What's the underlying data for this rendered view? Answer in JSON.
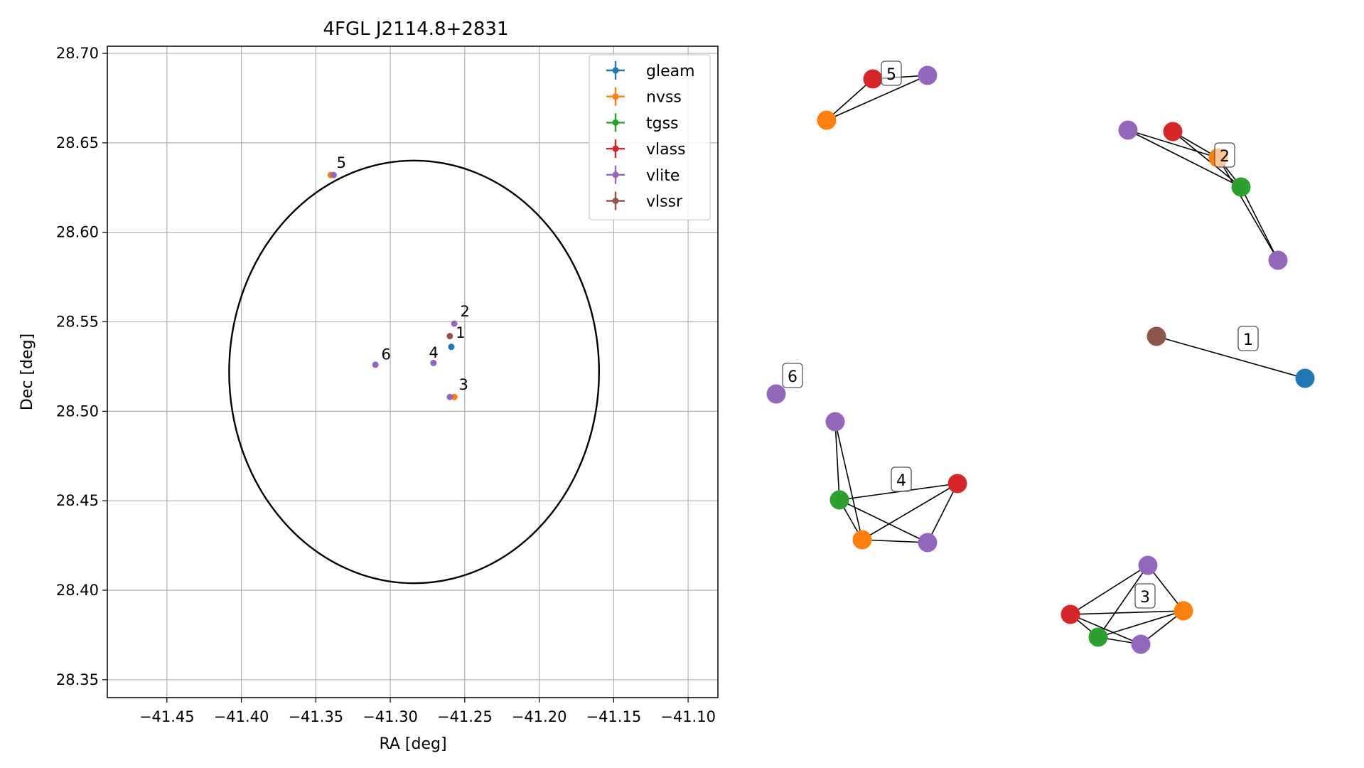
{
  "chart_data": [
    {
      "type": "scatter",
      "title": "4FGL J2114.8+2831",
      "xlabel": "RA [deg]",
      "ylabel": "Dec [deg]",
      "xlim": [
        -41.49,
        -41.08
      ],
      "ylim": [
        28.34,
        28.704
      ],
      "xticks": [
        -41.45,
        -41.4,
        -41.35,
        -41.3,
        -41.25,
        -41.2,
        -41.15,
        -41.1
      ],
      "xtick_labels": [
        "−41.45",
        "−41.40",
        "−41.35",
        "−41.30",
        "−41.25",
        "−41.20",
        "−41.15",
        "−41.10"
      ],
      "yticks": [
        28.35,
        28.4,
        28.45,
        28.5,
        28.55,
        28.6,
        28.65,
        28.7
      ],
      "ytick_labels": [
        "28.35",
        "28.40",
        "28.45",
        "28.50",
        "28.55",
        "28.60",
        "28.65",
        "28.70"
      ],
      "grid": true,
      "legend_position": "top-right",
      "series": [
        {
          "name": "gleam",
          "color": "#1f77b4",
          "points": [
            [
              -41.259,
              28.536
            ]
          ]
        },
        {
          "name": "nvss",
          "color": "#ff7f0e",
          "points": [
            [
              -41.257,
              28.508
            ],
            [
              -41.34,
              28.632
            ]
          ]
        },
        {
          "name": "tgss",
          "color": "#2ca02c",
          "points": []
        },
        {
          "name": "vlass",
          "color": "#d62728",
          "points": []
        },
        {
          "name": "vlite",
          "color": "#9467bd",
          "points": [
            [
              -41.257,
              28.549
            ],
            [
              -41.26,
              28.508
            ],
            [
              -41.271,
              28.527
            ],
            [
              -41.338,
              28.632
            ],
            [
              -41.31,
              28.526
            ]
          ]
        },
        {
          "name": "vlssr",
          "color": "#8c564b",
          "points": [
            [
              -41.26,
              28.542
            ]
          ]
        }
      ],
      "annotations": [
        {
          "text": "1",
          "x": -41.256,
          "y": 28.541
        },
        {
          "text": "2",
          "x": -41.253,
          "y": 28.553
        },
        {
          "text": "3",
          "x": -41.254,
          "y": 28.512
        },
        {
          "text": "4",
          "x": -41.274,
          "y": 28.53
        },
        {
          "text": "5",
          "x": -41.336,
          "y": 28.636
        },
        {
          "text": "6",
          "x": -41.306,
          "y": 28.529
        }
      ],
      "ellipse": {
        "center": [
          -41.284,
          28.522
        ],
        "semi_axis_x": 0.1242,
        "semi_axis_y": 0.1181,
        "color": "#000000"
      }
    },
    {
      "type": "network",
      "node_colors": {
        "gleam": "#1f77b4",
        "nvss": "#ff7f0e",
        "tgss": "#2ca02c",
        "vlass": "#d62728",
        "vlite": "#9467bd",
        "vlssr": "#8c564b"
      },
      "groups": [
        {
          "label": "5",
          "nodes": [
            "vlass",
            "vlite",
            "nvss"
          ],
          "edges": [
            [
              0,
              1
            ],
            [
              1,
              2
            ],
            [
              0,
              2
            ]
          ]
        },
        {
          "label": "2",
          "nodes": [
            "vlite",
            "vlass",
            "nvss",
            "tgss",
            "vlite"
          ],
          "edges": [
            [
              0,
              2
            ],
            [
              0,
              3
            ],
            [
              1,
              2
            ],
            [
              1,
              3
            ],
            [
              2,
              3
            ],
            [
              2,
              4
            ],
            [
              3,
              4
            ]
          ]
        },
        {
          "label": "1",
          "nodes": [
            "vlssr",
            "gleam"
          ],
          "edges": [
            [
              0,
              1
            ]
          ]
        },
        {
          "label": "6",
          "nodes": [
            "vlite"
          ],
          "edges": []
        },
        {
          "label": "4",
          "nodes": [
            "vlite",
            "tgss",
            "vlass",
            "nvss",
            "vlite"
          ],
          "edges": [
            [
              0,
              1
            ],
            [
              0,
              3
            ],
            [
              1,
              2
            ],
            [
              1,
              3
            ],
            [
              1,
              4
            ],
            [
              2,
              3
            ],
            [
              2,
              4
            ],
            [
              3,
              4
            ]
          ]
        },
        {
          "label": "3",
          "nodes": [
            "vlite",
            "vlass",
            "nvss",
            "tgss",
            "vlite"
          ],
          "edges": [
            [
              0,
              1
            ],
            [
              0,
              3
            ],
            [
              0,
              2
            ],
            [
              1,
              2
            ],
            [
              1,
              3
            ],
            [
              2,
              3
            ],
            [
              2,
              4
            ],
            [
              3,
              4
            ],
            [
              1,
              4
            ]
          ]
        }
      ]
    }
  ]
}
